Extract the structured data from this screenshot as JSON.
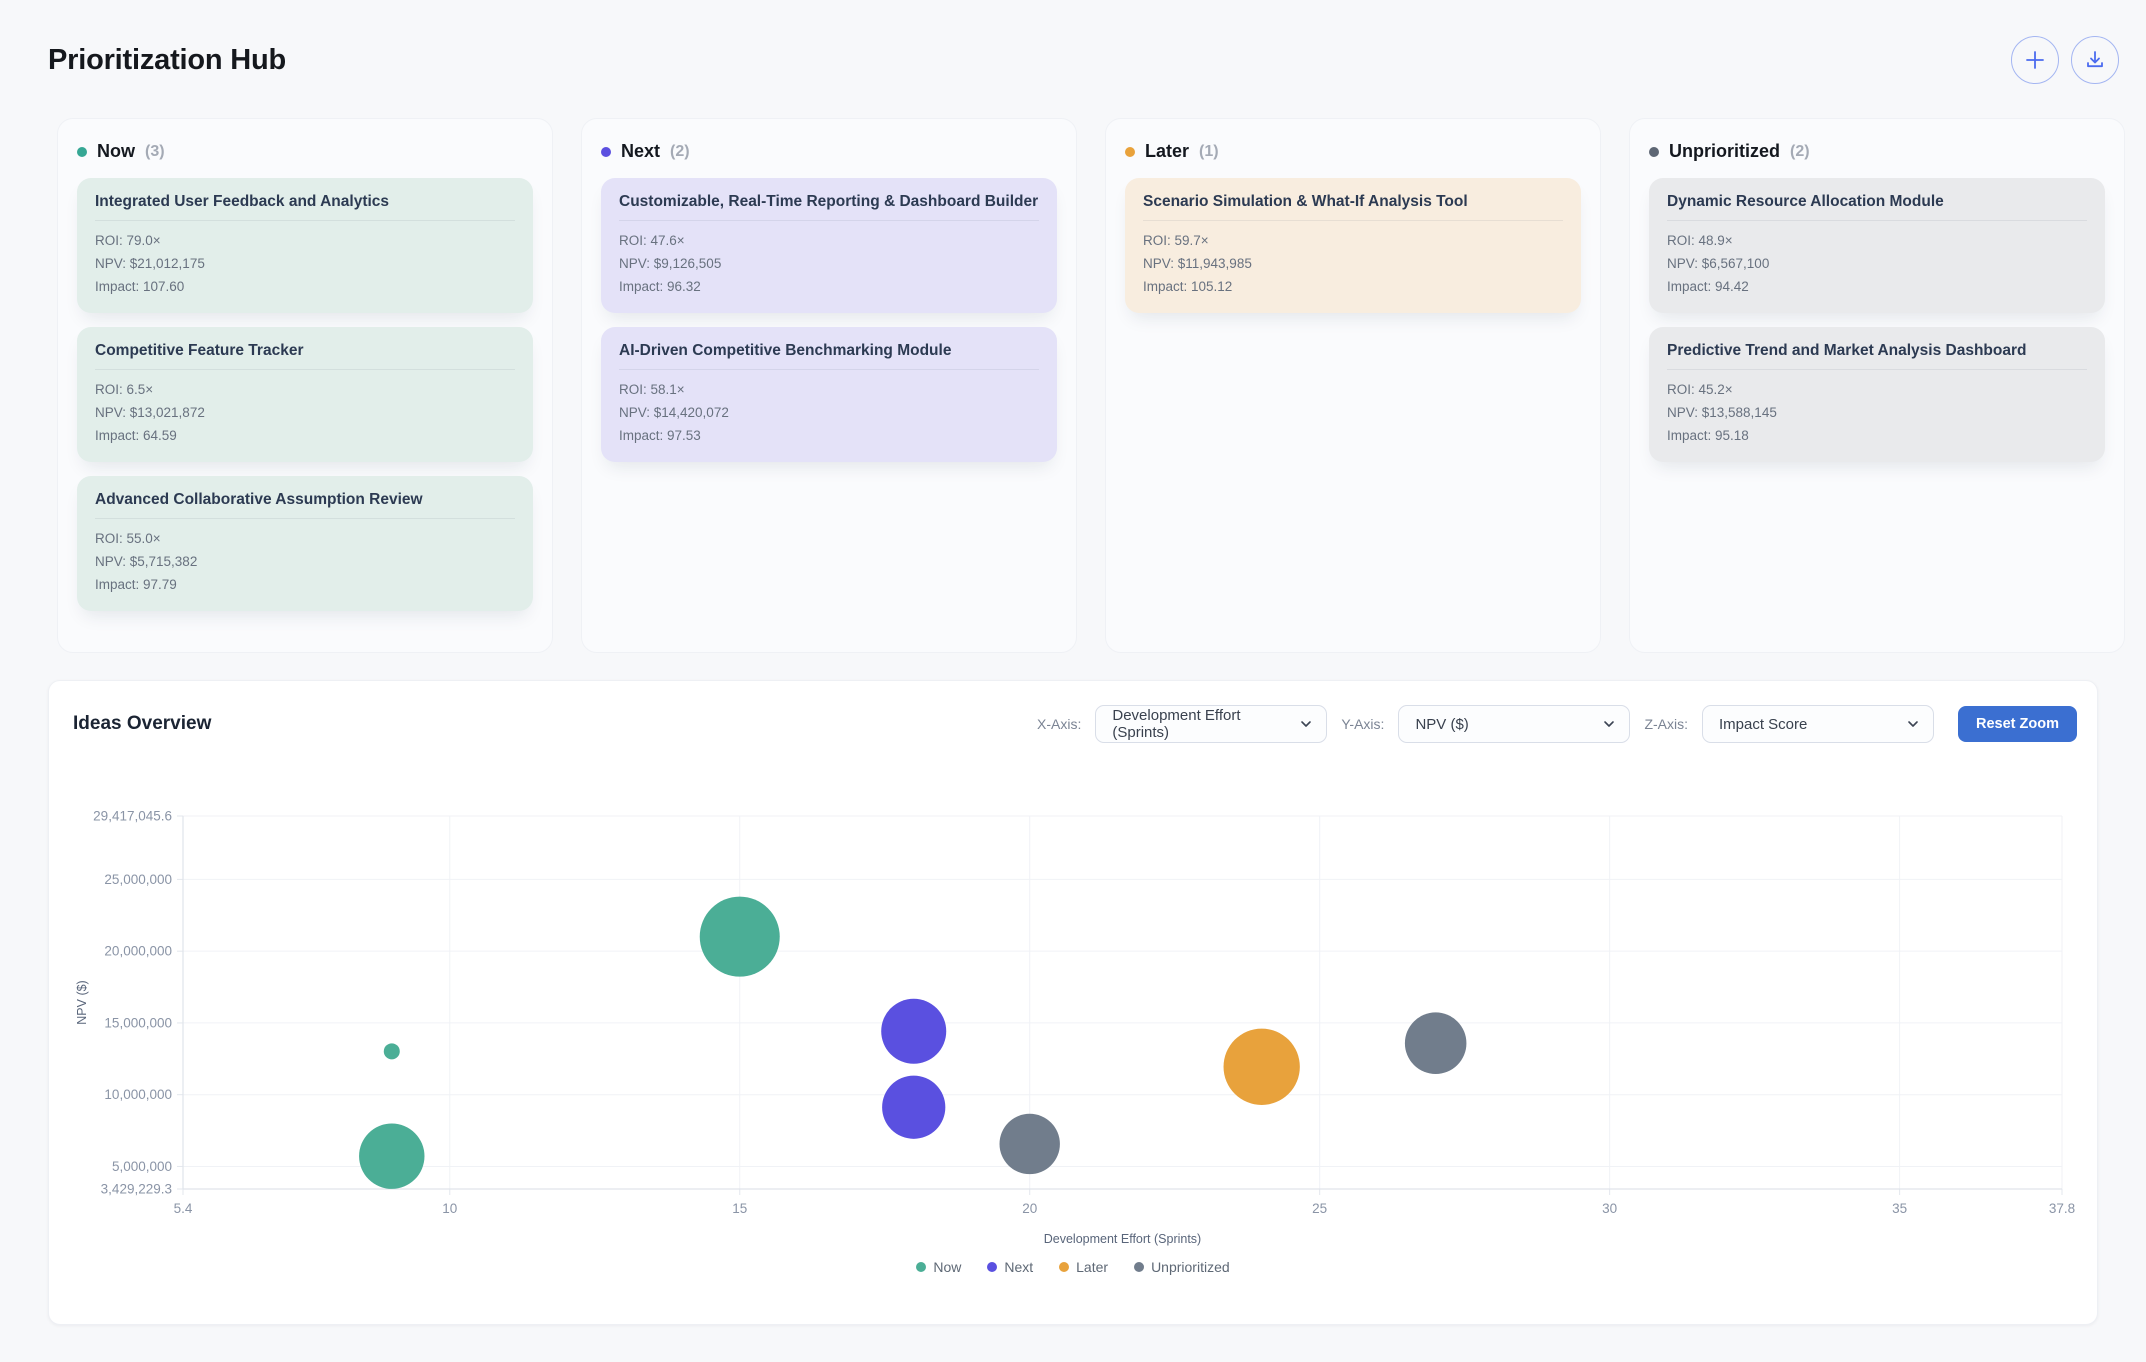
{
  "page": {
    "title": "Prioritization Hub"
  },
  "header": {
    "add_button_icon": "plus-icon",
    "export_button_icon": "download-icon"
  },
  "board": {
    "columns": [
      {
        "name": "Now",
        "count": "(3)",
        "dot_color": "#35A794",
        "card_bg": "#E2EEEA",
        "cards": [
          {
            "title": "Integrated User Feedback and Analytics",
            "roi": "ROI: 79.0×",
            "npv": "NPV: $21,012,175",
            "impact": "Impact: 107.60"
          },
          {
            "title": "Competitive Feature Tracker",
            "roi": "ROI: 6.5×",
            "npv": "NPV: $13,021,872",
            "impact": "Impact: 64.59"
          },
          {
            "title": "Advanced Collaborative Assumption Review",
            "roi": "ROI: 55.0×",
            "npv": "NPV: $5,715,382",
            "impact": "Impact: 97.79"
          }
        ]
      },
      {
        "name": "Next",
        "count": "(2)",
        "dot_color": "#5B4FE0",
        "card_bg": "#E4E2F8",
        "cards": [
          {
            "title": "Customizable, Real-Time Reporting & Dashboard Builder",
            "roi": "ROI: 47.6×",
            "npv": "NPV: $9,126,505",
            "impact": "Impact: 96.32"
          },
          {
            "title": "AI-Driven Competitive Benchmarking Module",
            "roi": "ROI: 58.1×",
            "npv": "NPV: $14,420,072",
            "impact": "Impact: 97.53"
          }
        ]
      },
      {
        "name": "Later",
        "count": "(1)",
        "dot_color": "#E9A23B",
        "card_bg": "#F8EDDF",
        "cards": [
          {
            "title": "Scenario Simulation & What-If Analysis Tool",
            "roi": "ROI: 59.7×",
            "npv": "NPV: $11,943,985",
            "impact": "Impact: 105.12"
          }
        ]
      },
      {
        "name": "Unprioritized",
        "count": "(2)",
        "dot_color": "#5D6674",
        "card_bg": "#E9EAEC",
        "cards": [
          {
            "title": "Dynamic Resource Allocation Module",
            "roi": "ROI: 48.9×",
            "npv": "NPV: $6,567,100",
            "impact": "Impact: 94.42"
          },
          {
            "title": "Predictive Trend and Market Analysis Dashboard",
            "roi": "ROI: 45.2×",
            "npv": "NPV: $13,588,145",
            "impact": "Impact: 95.18"
          }
        ]
      }
    ]
  },
  "overview": {
    "title": "Ideas Overview",
    "controls": [
      {
        "label": "X-Axis:",
        "value": "Development Effort (Sprints)"
      },
      {
        "label": "Y-Axis:",
        "value": "NPV ($)"
      },
      {
        "label": "Z-Axis:",
        "value": "Impact Score"
      }
    ],
    "reset_label": "Reset Zoom"
  },
  "chart_data": {
    "type": "scatter",
    "subtype": "bubble",
    "title": "Ideas Overview",
    "xlabel": "Development Effort (Sprints)",
    "ylabel": "NPV ($)",
    "xlim": [
      5.4,
      37.8
    ],
    "ylim": [
      3429229.3,
      29417045.6
    ],
    "grid": true,
    "legend_position": "bottom",
    "x_ticks": [
      {
        "v": 5.4,
        "label": "5.4"
      },
      {
        "v": 10,
        "label": "10"
      },
      {
        "v": 15,
        "label": "15"
      },
      {
        "v": 20,
        "label": "20"
      },
      {
        "v": 25,
        "label": "25"
      },
      {
        "v": 30,
        "label": "30"
      },
      {
        "v": 35,
        "label": "35"
      },
      {
        "v": 37.8,
        "label": "37.8"
      }
    ],
    "y_ticks": [
      {
        "v": 29417045.6,
        "label": "29,417,045.6"
      },
      {
        "v": 25000000,
        "label": "25,000,000"
      },
      {
        "v": 20000000,
        "label": "20,000,000"
      },
      {
        "v": 15000000,
        "label": "15,000,000"
      },
      {
        "v": 10000000,
        "label": "10,000,000"
      },
      {
        "v": 5000000,
        "label": "5,000,000"
      },
      {
        "v": 3429229.3,
        "label": "3,429,229.3"
      }
    ],
    "size_scale": {
      "impact_min": 64.59,
      "impact_max": 107.6,
      "r_min": 8,
      "r_max": 40
    },
    "series": [
      {
        "name": "Now",
        "color": "#4BAE96",
        "points": [
          {
            "x": 15,
            "y": 21012175,
            "size": 107.6,
            "label": "Integrated User Feedback and Analytics"
          },
          {
            "x": 9,
            "y": 13021872,
            "size": 64.59,
            "label": "Competitive Feature Tracker"
          },
          {
            "x": 9,
            "y": 5715382,
            "size": 97.79,
            "label": "Advanced Collaborative Assumption Review"
          }
        ]
      },
      {
        "name": "Next",
        "color": "#5A50E0",
        "points": [
          {
            "x": 18,
            "y": 14420072,
            "size": 97.53,
            "label": "AI-Driven Competitive Benchmarking Module"
          },
          {
            "x": 18,
            "y": 9126505,
            "size": 96.32,
            "label": "Customizable, Real-Time Reporting & Dashboard Builder"
          }
        ]
      },
      {
        "name": "Later",
        "color": "#E8A23C",
        "points": [
          {
            "x": 24,
            "y": 11943985,
            "size": 105.12,
            "label": "Scenario Simulation & What-If Analysis Tool"
          }
        ]
      },
      {
        "name": "Unprioritized",
        "color": "#717D8C",
        "points": [
          {
            "x": 20,
            "y": 6567100,
            "size": 94.42,
            "label": "Dynamic Resource Allocation Module"
          },
          {
            "x": 27,
            "y": 13588145,
            "size": 95.18,
            "label": "Predictive Trend and Market Analysis Dashboard"
          }
        ]
      }
    ]
  }
}
